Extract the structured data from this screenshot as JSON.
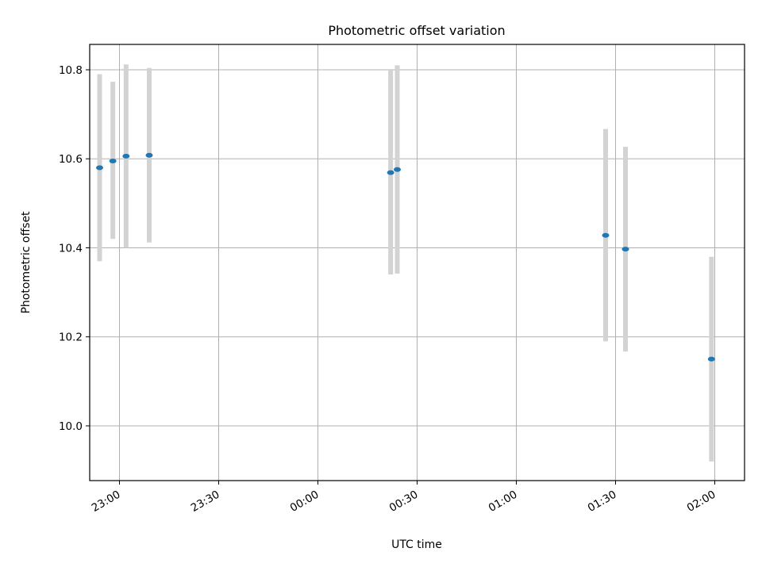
{
  "chart_data": {
    "type": "scatter",
    "title": "Photometric offset variation",
    "xlabel": "UTC time",
    "ylabel": "Photometric offset",
    "x_ticks": [
      "23:00",
      "23:30",
      "00:00",
      "00:30",
      "01:00",
      "01:30",
      "02:00"
    ],
    "y_ticks": [
      "10.0",
      "10.2",
      "10.4",
      "10.6",
      "10.8"
    ],
    "xlim": [
      "22:51",
      "02:09"
    ],
    "ylim": [
      9.877,
      10.857
    ],
    "grid": true,
    "marker_color": "#1f77b4",
    "errorbar_color": "#d3d3d3",
    "points": [
      {
        "time": "22:54",
        "y": 10.58,
        "err_low": 10.37,
        "err_high": 10.79
      },
      {
        "time": "22:58",
        "y": 10.595,
        "err_low": 10.42,
        "err_high": 10.773
      },
      {
        "time": "23:02",
        "y": 10.606,
        "err_low": 10.4,
        "err_high": 10.812
      },
      {
        "time": "23:09",
        "y": 10.608,
        "err_low": 10.412,
        "err_high": 10.804
      },
      {
        "time": "00:22",
        "y": 10.569,
        "err_low": 10.34,
        "err_high": 10.8
      },
      {
        "time": "00:24",
        "y": 10.576,
        "err_low": 10.342,
        "err_high": 10.81
      },
      {
        "time": "01:27",
        "y": 10.428,
        "err_low": 10.19,
        "err_high": 10.667
      },
      {
        "time": "01:33",
        "y": 10.397,
        "err_low": 10.167,
        "err_high": 10.627
      },
      {
        "time": "01:59",
        "y": 10.15,
        "err_low": 9.92,
        "err_high": 10.38
      }
    ]
  }
}
